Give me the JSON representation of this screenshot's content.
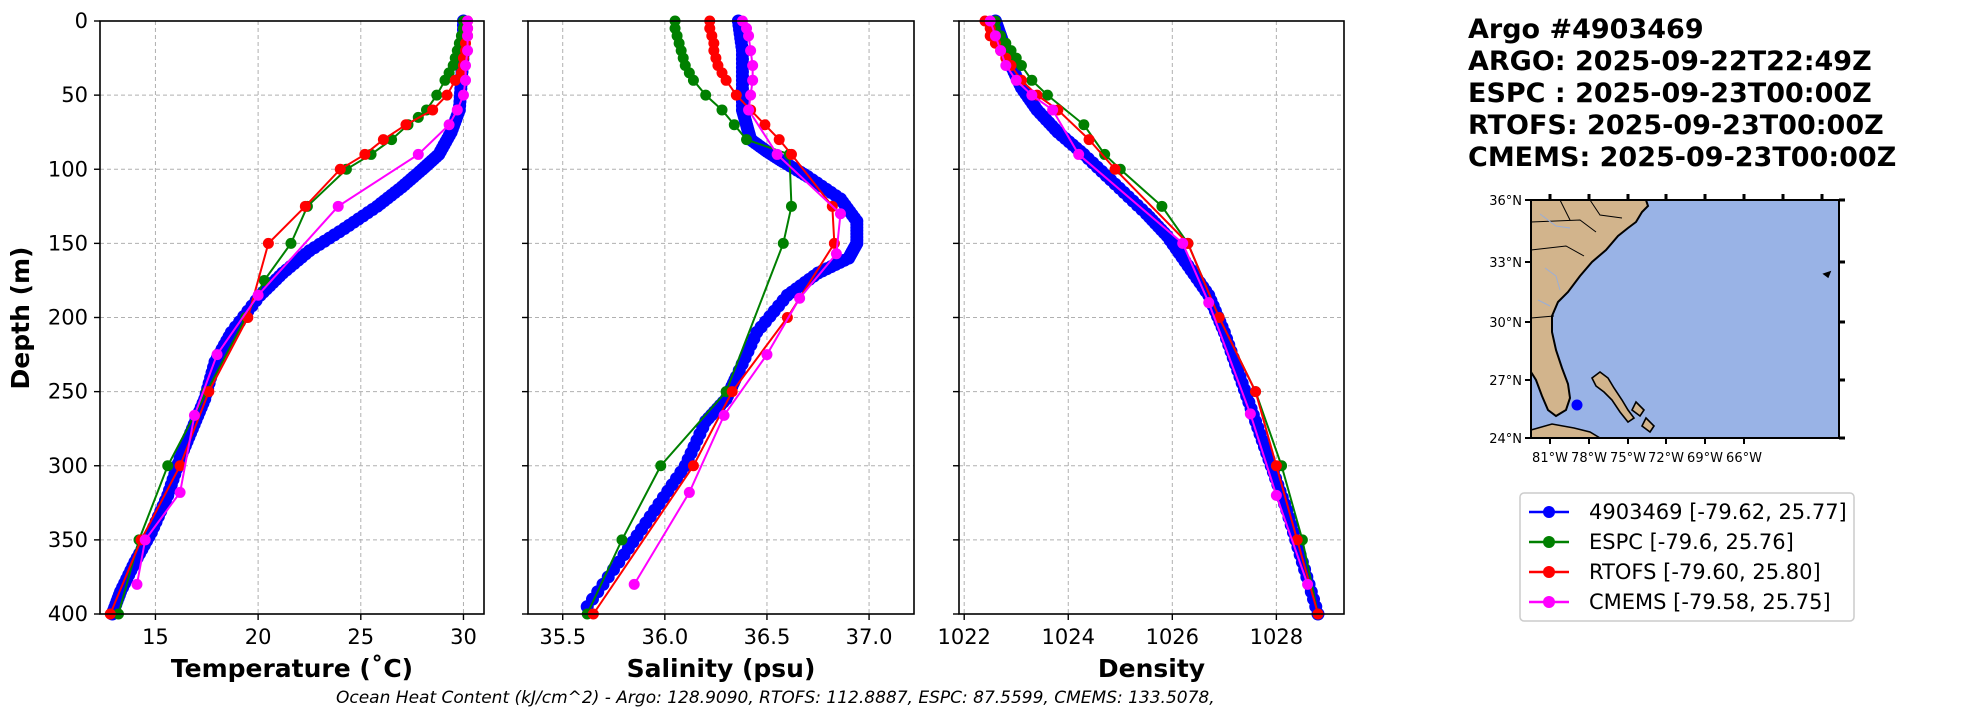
{
  "header": {
    "lines": [
      "Argo #4903469",
      "ARGO: 2025-09-22T22:49Z",
      "ESPC : 2025-09-23T00:00Z",
      "RTOFS: 2025-09-23T00:00Z",
      "CMEMS: 2025-09-23T00:00Z"
    ]
  },
  "footer": {
    "text": "Ocean Heat Content (kJ/cm^2) - Argo: 128.9090,  RTOFS: 112.8887,  ESPC: 87.5599,  CMEMS: 133.5078,"
  },
  "colors": {
    "argo": "#0000ff",
    "espc": "#008000",
    "rtofs": "#ff0000",
    "cmems": "#ff00ff",
    "ocean": "#99b3e6",
    "land": "#d2b48c"
  },
  "legend": {
    "entries": [
      {
        "label": "4903469 [-79.62, 25.77]",
        "color": "#0000ff"
      },
      {
        "label": "ESPC [-79.6, 25.76]",
        "color": "#008000"
      },
      {
        "label": "RTOFS [-79.60, 25.80]",
        "color": "#ff0000"
      },
      {
        "label": "CMEMS [-79.58, 25.75]",
        "color": "#ff00ff"
      }
    ]
  },
  "map": {
    "lat_labels": [
      "36°N",
      "33°N",
      "30°N",
      "27°N",
      "24°N"
    ],
    "lon_labels": [
      "81°W",
      "78°W",
      "75°W",
      "72°W",
      "69°W",
      "66°W"
    ],
    "float_position": {
      "lon": -79.62,
      "lat": 25.77
    }
  },
  "chart_data": [
    {
      "type": "line",
      "xlabel": "Temperature (˚C)",
      "ylabel": "Depth (m)",
      "xlim": [
        12.3,
        31.0
      ],
      "ylim": [
        400,
        0
      ],
      "xticks": [
        15,
        20,
        25,
        30
      ],
      "xtick_labels": [
        "15",
        "20",
        "25",
        "30"
      ],
      "yticks": [
        0,
        50,
        100,
        150,
        200,
        250,
        300,
        350,
        400
      ],
      "ytick_labels": [
        "0",
        "50",
        "100",
        "150",
        "200",
        "250",
        "300",
        "350",
        "400"
      ],
      "series": [
        {
          "name": "Argo",
          "color": "#0000ff",
          "dense": true,
          "x": [
            30.0,
            30.0,
            29.9,
            29.8,
            29.4,
            28.8,
            28.0,
            27.0,
            25.8,
            24.2,
            22.5,
            21.2,
            20.1,
            18.7,
            17.9,
            17.4,
            16.8,
            16.2,
            15.6,
            14.8,
            14.0,
            13.3,
            12.9
          ],
          "y": [
            0,
            20,
            40,
            60,
            75,
            90,
            100,
            112,
            125,
            140,
            155,
            170,
            185,
            210,
            230,
            255,
            275,
            295,
            320,
            345,
            365,
            385,
            400
          ]
        },
        {
          "name": "ESPC",
          "color": "#008000",
          "x": [
            30.0,
            30.0,
            29.9,
            29.8,
            29.7,
            29.6,
            29.5,
            29.3,
            29.1,
            28.7,
            28.2,
            27.8,
            27.3,
            26.5,
            25.5,
            24.3,
            22.4,
            21.6,
            20.3,
            19.4,
            17.5,
            15.6,
            14.2,
            13.2
          ],
          "y": [
            0,
            5,
            10,
            15,
            20,
            25,
            30,
            35,
            40,
            50,
            60,
            65,
            70,
            80,
            90,
            100,
            125,
            150,
            175,
            200,
            250,
            300,
            350,
            400
          ]
        },
        {
          "name": "RTOFS",
          "color": "#ff0000",
          "x": [
            30.2,
            30.2,
            30.2,
            30.1,
            30.1,
            30.0,
            30.0,
            29.9,
            29.6,
            29.2,
            28.5,
            27.2,
            26.1,
            25.2,
            24.0,
            22.3,
            20.5,
            19.5,
            17.6,
            16.2,
            14.3,
            12.8
          ],
          "y": [
            0,
            5,
            10,
            15,
            20,
            25,
            30,
            35,
            40,
            50,
            60,
            70,
            80,
            90,
            100,
            125,
            150,
            200,
            250,
            300,
            350,
            400
          ]
        },
        {
          "name": "CMEMS",
          "color": "#ff00ff",
          "x": [
            30.2,
            30.2,
            30.2,
            30.2,
            30.1,
            30.1,
            30.0,
            29.7,
            29.3,
            27.8,
            23.9,
            20.0,
            18.0,
            16.9,
            16.2,
            14.5,
            14.1
          ],
          "y": [
            0,
            5,
            10,
            20,
            30,
            40,
            50,
            60,
            70,
            90,
            125,
            185,
            225,
            266,
            318,
            350,
            380
          ]
        }
      ]
    },
    {
      "type": "line",
      "xlabel": "Salinity (psu)",
      "ylabel": "",
      "xlim": [
        35.33,
        37.22
      ],
      "ylim": [
        400,
        0
      ],
      "xticks": [
        35.5,
        36.0,
        36.5,
        37.0
      ],
      "xtick_labels": [
        "35.5",
        "36.0",
        "36.5",
        "37.0"
      ],
      "yticks": [
        0,
        50,
        100,
        150,
        200,
        250,
        300,
        350,
        400
      ],
      "ytick_labels": [],
      "series": [
        {
          "name": "Argo",
          "color": "#0000ff",
          "dense": true,
          "x": [
            36.36,
            36.38,
            36.38,
            36.38,
            36.4,
            36.42,
            36.5,
            36.58,
            36.7,
            36.86,
            36.94,
            36.94,
            36.9,
            36.75,
            36.6,
            36.45,
            36.35,
            36.3,
            36.2,
            36.1,
            35.95,
            35.8,
            35.62
          ],
          "y": [
            0,
            20,
            40,
            60,
            70,
            80,
            88,
            95,
            105,
            120,
            135,
            150,
            160,
            170,
            185,
            210,
            240,
            255,
            270,
            300,
            330,
            360,
            395
          ]
        },
        {
          "name": "ESPC",
          "color": "#008000",
          "x": [
            36.05,
            36.05,
            36.06,
            36.07,
            36.08,
            36.09,
            36.1,
            36.12,
            36.14,
            36.2,
            36.28,
            36.34,
            36.4,
            36.61,
            36.62,
            36.58,
            36.3,
            35.98,
            35.79,
            35.62
          ],
          "y": [
            0,
            5,
            10,
            15,
            20,
            25,
            30,
            35,
            40,
            50,
            60,
            70,
            80,
            90,
            125,
            150,
            250,
            300,
            350,
            400
          ]
        },
        {
          "name": "RTOFS",
          "color": "#ff0000",
          "x": [
            36.22,
            36.22,
            36.23,
            36.24,
            36.24,
            36.25,
            36.26,
            36.28,
            36.3,
            36.35,
            36.42,
            36.49,
            36.56,
            36.62,
            36.82,
            36.83,
            36.6,
            36.33,
            36.14,
            35.65
          ],
          "y": [
            0,
            5,
            10,
            15,
            20,
            25,
            30,
            35,
            40,
            50,
            60,
            70,
            80,
            90,
            125,
            150,
            200,
            250,
            300,
            400
          ]
        },
        {
          "name": "CMEMS",
          "color": "#ff00ff",
          "x": [
            36.38,
            36.4,
            36.41,
            36.42,
            36.43,
            36.43,
            36.42,
            36.41,
            36.55,
            36.86,
            36.84,
            36.66,
            36.5,
            36.29,
            36.12,
            35.85
          ],
          "y": [
            0,
            5,
            10,
            20,
            30,
            40,
            50,
            60,
            90,
            130,
            157,
            187,
            225,
            266,
            318,
            380
          ]
        }
      ]
    },
    {
      "type": "line",
      "xlabel": "Density",
      "ylabel": "",
      "xlim": [
        1021.9,
        1029.3
      ],
      "ylim": [
        400,
        0
      ],
      "xticks": [
        1022,
        1024,
        1026,
        1028
      ],
      "xtick_labels": [
        "1022",
        "1024",
        "1026",
        "1028"
      ],
      "yticks": [
        0,
        50,
        100,
        150,
        200,
        250,
        300,
        350,
        400
      ],
      "ytick_labels": [],
      "series": [
        {
          "name": "Argo",
          "color": "#0000ff",
          "dense": true,
          "x": [
            1022.6,
            1022.7,
            1022.8,
            1022.9,
            1023.1,
            1023.4,
            1023.8,
            1024.3,
            1024.9,
            1025.5,
            1025.9,
            1026.3,
            1026.7,
            1027.0,
            1027.3,
            1027.6,
            1027.9,
            1028.2,
            1028.5,
            1028.8
          ],
          "y": [
            0,
            10,
            20,
            30,
            45,
            60,
            75,
            90,
            110,
            130,
            145,
            165,
            185,
            210,
            240,
            270,
            300,
            330,
            365,
            400
          ]
        },
        {
          "name": "ESPC",
          "color": "#008000",
          "x": [
            1022.6,
            1022.6,
            1022.7,
            1022.8,
            1022.9,
            1023.0,
            1023.1,
            1023.3,
            1023.6,
            1024.3,
            1024.7,
            1025.0,
            1025.8,
            1026.3,
            1026.9,
            1027.6,
            1028.1,
            1028.5,
            1028.8
          ],
          "y": [
            0,
            5,
            10,
            15,
            20,
            25,
            30,
            40,
            50,
            70,
            90,
            100,
            125,
            150,
            200,
            250,
            300,
            350,
            400
          ]
        },
        {
          "name": "RTOFS",
          "color": "#ff0000",
          "x": [
            1022.4,
            1022.5,
            1022.5,
            1022.6,
            1022.7,
            1022.8,
            1022.9,
            1023.1,
            1023.4,
            1023.8,
            1024.4,
            1024.9,
            1026.3,
            1026.9,
            1027.6,
            1028.0,
            1028.4,
            1028.8
          ],
          "y": [
            0,
            5,
            10,
            15,
            20,
            25,
            30,
            40,
            50,
            60,
            80,
            100,
            150,
            200,
            250,
            300,
            350,
            400
          ]
        },
        {
          "name": "CMEMS",
          "color": "#ff00ff",
          "x": [
            1022.5,
            1022.6,
            1022.7,
            1022.8,
            1023.0,
            1023.3,
            1023.7,
            1024.2,
            1026.2,
            1026.7,
            1027.5,
            1028.0,
            1028.6
          ],
          "y": [
            0,
            10,
            20,
            30,
            40,
            50,
            60,
            90,
            150,
            190,
            265,
            320,
            380
          ]
        }
      ]
    }
  ]
}
